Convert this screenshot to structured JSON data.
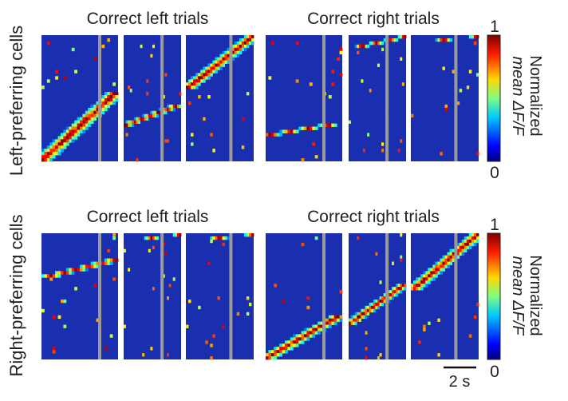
{
  "chart_data": {
    "type": "heatmap",
    "colormap": "jet",
    "value_range": [
      0,
      1
    ],
    "colorbar": {
      "label_line1": "Normalized",
      "label_line2": "mean ΔF/F",
      "max_label": "1",
      "min_label": "0"
    },
    "scale_bar_label": "2 s",
    "rows": [
      {
        "row_label": "Left-preferring cells",
        "groups": [
          {
            "title": "Correct left trials",
            "panel_peak_fractions": [
              0.02,
              0.45,
              0.65
            ],
            "panel_active_cells": [
              [
                0.45,
                1.0
              ],
              [
                0.55,
                0.72
              ],
              [
                0.0,
                0.42
              ]
            ]
          },
          {
            "title": "Correct right trials",
            "panel_peak_fractions": [
              0.1,
              0.4,
              0.3
            ],
            "panel_active_cells": [
              [
                0.7,
                0.8
              ],
              [
                0.0,
                0.1
              ],
              [
                0.0,
                0.05
              ]
            ]
          }
        ]
      },
      {
        "row_label": "Right-preferring cells",
        "groups": [
          {
            "title": "Correct left trials",
            "panel_peak_fractions": [
              0.05,
              0.4,
              0.3
            ],
            "panel_active_cells": [
              [
                0.2,
                0.35
              ],
              [
                0.0,
                0.05
              ],
              [
                0.0,
                0.05
              ]
            ]
          },
          {
            "title": "Correct right trials",
            "panel_peak_fractions": [
              0.02,
              0.5,
              0.65
            ],
            "panel_active_cells": [
              [
                0.65,
                1.0
              ],
              [
                0.4,
                0.72
              ],
              [
                0.0,
                0.45
              ]
            ]
          }
        ]
      }
    ]
  }
}
